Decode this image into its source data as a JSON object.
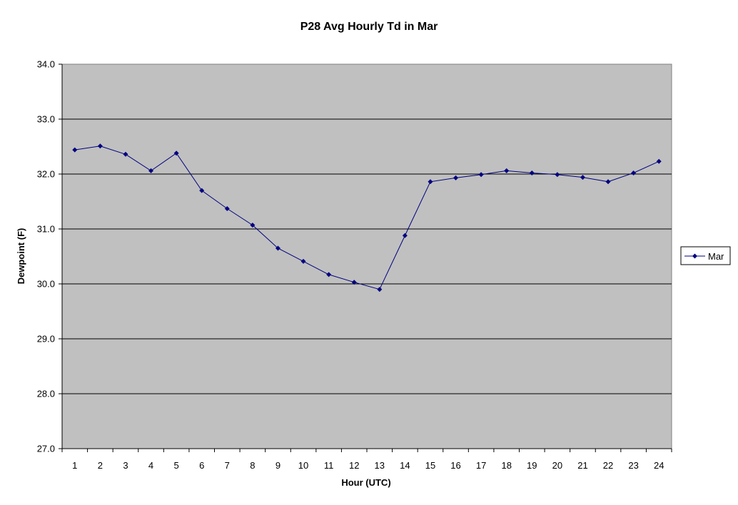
{
  "chart_data": {
    "type": "line",
    "title": "P28 Avg Hourly Td in Mar",
    "xlabel": "Hour (UTC)",
    "ylabel": "Dewpoint (F)",
    "x": [
      1,
      2,
      3,
      4,
      5,
      6,
      7,
      8,
      9,
      10,
      11,
      12,
      13,
      14,
      15,
      16,
      17,
      18,
      19,
      20,
      21,
      22,
      23,
      24
    ],
    "ylim": [
      27.0,
      34.0
    ],
    "yticks": [
      "27.0",
      "28.0",
      "29.0",
      "30.0",
      "31.0",
      "32.0",
      "33.0",
      "34.0"
    ],
    "grid": "horizontal major",
    "legend_position": "right",
    "plot_background": "#C0C0C0",
    "series": [
      {
        "name": "Mar",
        "color": "#000080",
        "marker": "diamond",
        "values": [
          32.44,
          32.51,
          32.36,
          32.06,
          32.38,
          31.7,
          31.37,
          31.07,
          30.65,
          30.41,
          30.17,
          30.03,
          29.9,
          30.88,
          31.86,
          31.93,
          31.99,
          32.06,
          32.02,
          31.99,
          31.94,
          31.86,
          32.02,
          32.23
        ]
      }
    ]
  }
}
